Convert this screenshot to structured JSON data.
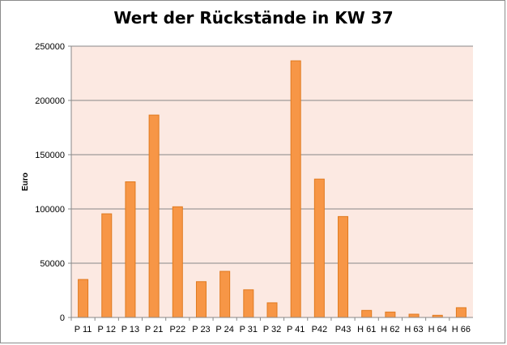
{
  "chart_data": {
    "type": "bar",
    "title": "Wert der Rückstände in KW 37",
    "xlabel": "",
    "ylabel": "Euro",
    "ylim": [
      0,
      250000
    ],
    "yticks": [
      0,
      50000,
      100000,
      150000,
      200000,
      250000
    ],
    "grid": true,
    "legend": "none",
    "colors": {
      "bar": "#f79646",
      "bar_edge": "#e07a1f",
      "plot_area": "#fce9e2",
      "gridline": "#888888"
    },
    "categories": [
      "P 11",
      "P 12",
      "P 13",
      "P 21",
      "P22",
      "P 23",
      "P 24",
      "P 31",
      "P 32",
      "P 41",
      "P42",
      "P43",
      "H 61",
      "H 62",
      "H 63",
      "H 64",
      "H 66"
    ],
    "values": [
      35000,
      95500,
      125000,
      186500,
      102000,
      33000,
      42500,
      25500,
      13500,
      236500,
      127500,
      93000,
      6500,
      5000,
      3000,
      2000,
      9000
    ]
  }
}
